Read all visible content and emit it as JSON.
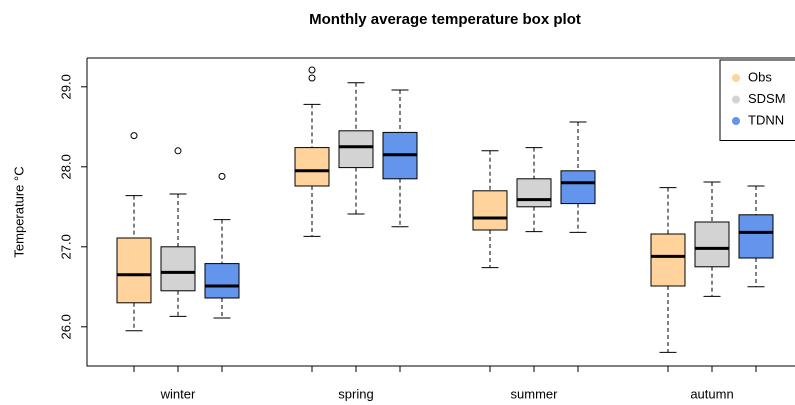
{
  "chart_data": {
    "type": "box",
    "title": "Monthly average temperature box plot",
    "y_label": "Temperature °C",
    "categories": [
      "winter",
      "spring",
      "summer",
      "autumn"
    ],
    "ylim": [
      25.51,
      29.36
    ],
    "yticks": [
      {
        "value": 26,
        "label": "26.0"
      },
      {
        "value": 27,
        "label": "27.0"
      },
      {
        "value": 28,
        "label": "28.0"
      },
      {
        "value": 29,
        "label": "29.0"
      }
    ],
    "legend": "top-right",
    "series": [
      {
        "name": "Obs",
        "color": "#ffd39b",
        "boxes": [
          {
            "min": 25.95,
            "q1": 26.3,
            "median": 26.65,
            "q3": 27.11,
            "max": 27.64,
            "outliers": [
              28.39
            ]
          },
          {
            "min": 27.13,
            "q1": 27.76,
            "median": 27.95,
            "q3": 28.24,
            "max": 28.78,
            "outliers": [
              29.21,
              29.11
            ]
          },
          {
            "min": 26.74,
            "q1": 27.21,
            "median": 27.36,
            "q3": 27.7,
            "max": 28.2,
            "outliers": []
          },
          {
            "min": 25.68,
            "q1": 26.51,
            "median": 26.88,
            "q3": 27.16,
            "max": 27.74,
            "outliers": []
          }
        ]
      },
      {
        "name": "SDSM",
        "color": "#d3d3d3",
        "boxes": [
          {
            "min": 26.13,
            "q1": 26.45,
            "median": 26.68,
            "q3": 27.0,
            "max": 27.66,
            "outliers": [
              28.2
            ]
          },
          {
            "min": 27.41,
            "q1": 27.99,
            "median": 28.25,
            "q3": 28.45,
            "max": 29.05,
            "outliers": []
          },
          {
            "min": 27.19,
            "q1": 27.5,
            "median": 27.59,
            "q3": 27.85,
            "max": 28.24,
            "outliers": []
          },
          {
            "min": 26.38,
            "q1": 26.75,
            "median": 26.98,
            "q3": 27.31,
            "max": 27.81,
            "outliers": []
          }
        ]
      },
      {
        "name": "TDNN",
        "color": "#6495ed",
        "boxes": [
          {
            "min": 26.11,
            "q1": 26.36,
            "median": 26.51,
            "q3": 26.79,
            "max": 27.34,
            "outliers": [
              27.88
            ]
          },
          {
            "min": 27.25,
            "q1": 27.85,
            "median": 28.15,
            "q3": 28.43,
            "max": 28.96,
            "outliers": []
          },
          {
            "min": 27.18,
            "q1": 27.54,
            "median": 27.8,
            "q3": 27.95,
            "max": 28.56,
            "outliers": []
          },
          {
            "min": 26.5,
            "q1": 26.86,
            "median": 27.18,
            "q3": 27.4,
            "max": 27.76,
            "outliers": []
          }
        ]
      }
    ]
  }
}
